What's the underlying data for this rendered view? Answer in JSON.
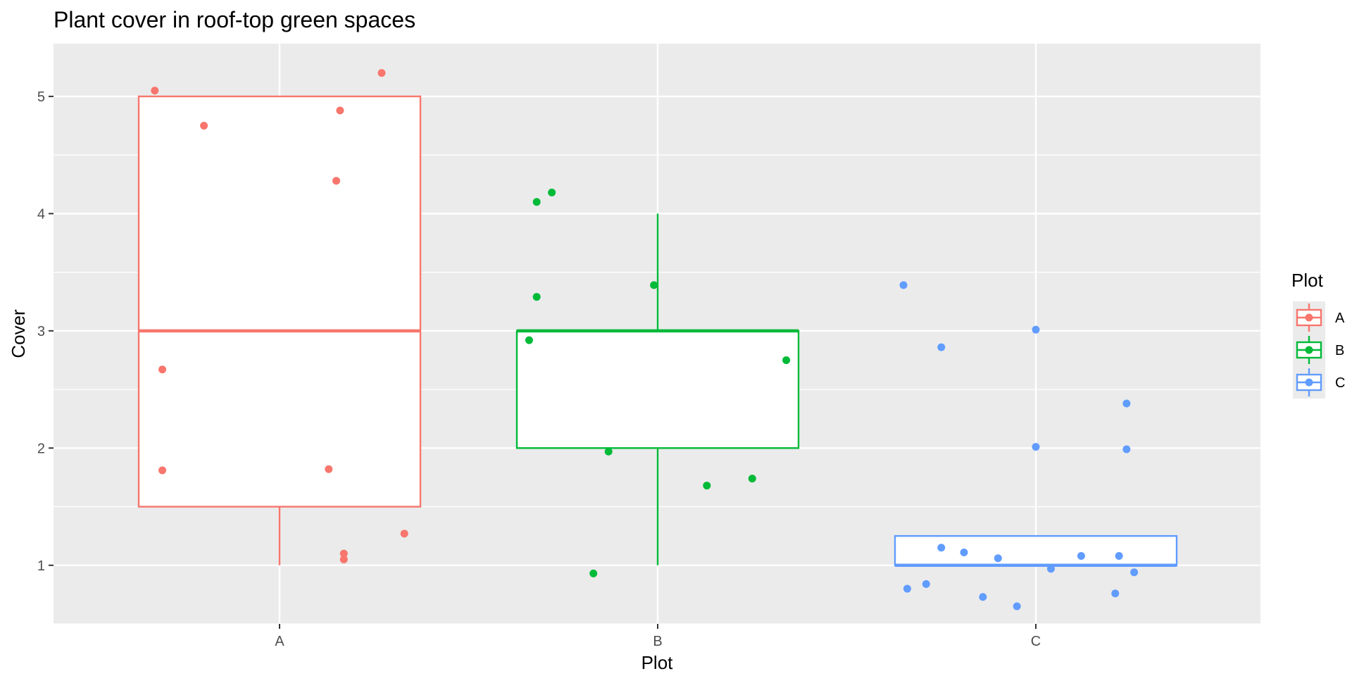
{
  "chart_data": {
    "type": "boxplot",
    "title": "Plant cover in roof-top green spaces",
    "xlabel": "Plot",
    "ylabel": "Cover",
    "ylim": [
      0.5,
      5.45
    ],
    "y_ticks": [
      1,
      2,
      3,
      4,
      5
    ],
    "grid": true,
    "legend": {
      "title": "Plot",
      "position": "right"
    },
    "categories": [
      "A",
      "B",
      "C"
    ],
    "series": [
      {
        "name": "A",
        "color": "#F8766D",
        "box": {
          "min": 1,
          "q1": 1.5,
          "median": 3,
          "q3": 5,
          "max": 5
        },
        "points": [
          {
            "x": -0.33,
            "y": 5.05
          },
          {
            "x": -0.2,
            "y": 4.75
          },
          {
            "x": 0.16,
            "y": 4.88
          },
          {
            "x": 0.27,
            "y": 5.2
          },
          {
            "x": 0.15,
            "y": 4.28
          },
          {
            "x": -0.31,
            "y": 2.67
          },
          {
            "x": -0.31,
            "y": 1.81
          },
          {
            "x": 0.13,
            "y": 1.82
          },
          {
            "x": 0.17,
            "y": 1.1
          },
          {
            "x": 0.17,
            "y": 1.05
          },
          {
            "x": 0.33,
            "y": 1.27
          }
        ]
      },
      {
        "name": "B",
        "color": "#00BA38",
        "box": {
          "min": 1,
          "q1": 2,
          "median": 3,
          "q3": 3,
          "max": 4
        },
        "points": [
          {
            "x": -0.32,
            "y": 3.29
          },
          {
            "x": -0.34,
            "y": 2.92
          },
          {
            "x": -0.32,
            "y": 4.1
          },
          {
            "x": -0.28,
            "y": 4.18
          },
          {
            "x": -0.01,
            "y": 3.39
          },
          {
            "x": 0.34,
            "y": 2.75
          },
          {
            "x": -0.13,
            "y": 1.97
          },
          {
            "x": 0.13,
            "y": 1.68
          },
          {
            "x": 0.25,
            "y": 1.74
          },
          {
            "x": -0.17,
            "y": 0.93
          }
        ]
      },
      {
        "name": "C",
        "color": "#619CFF",
        "box": {
          "min": 1,
          "q1": 1,
          "median": 1,
          "q3": 1.25,
          "max": 1.25
        },
        "points": [
          {
            "x": -0.35,
            "y": 3.39
          },
          {
            "x": -0.25,
            "y": 2.86
          },
          {
            "x": 0.0,
            "y": 3.01
          },
          {
            "x": 0.0,
            "y": 2.01
          },
          {
            "x": 0.24,
            "y": 2.38
          },
          {
            "x": 0.24,
            "y": 1.99
          },
          {
            "x": -0.25,
            "y": 1.15
          },
          {
            "x": -0.19,
            "y": 1.11
          },
          {
            "x": -0.1,
            "y": 1.06
          },
          {
            "x": 0.12,
            "y": 1.08
          },
          {
            "x": 0.22,
            "y": 1.08
          },
          {
            "x": 0.04,
            "y": 0.97
          },
          {
            "x": 0.26,
            "y": 0.94
          },
          {
            "x": -0.34,
            "y": 0.8
          },
          {
            "x": -0.29,
            "y": 0.84
          },
          {
            "x": -0.14,
            "y": 0.73
          },
          {
            "x": -0.05,
            "y": 0.65
          },
          {
            "x": 0.21,
            "y": 0.76
          }
        ]
      }
    ]
  }
}
